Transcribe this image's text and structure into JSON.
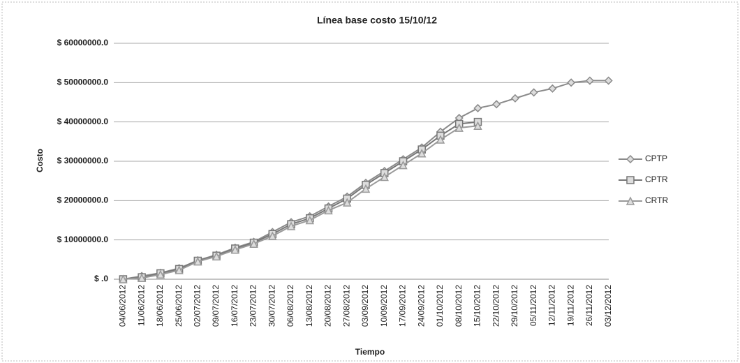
{
  "chart_data": {
    "type": "line",
    "title": "Línea base costo  15/10/12",
    "x_label": "Tiempo",
    "y_label": "Costo",
    "categories": [
      "04/06/2012",
      "11/06/2012",
      "18/06/2012",
      "25/06/2012",
      "02/07/2012",
      "09/07/2012",
      "16/07/2012",
      "23/07/2012",
      "30/07/2012",
      "06/08/2012",
      "13/08/2012",
      "20/08/2012",
      "27/08/2012",
      "03/09/2012",
      "10/09/2012",
      "17/09/2012",
      "24/09/2012",
      "01/10/2012",
      "08/10/2012",
      "15/10/2012",
      "22/10/2012",
      "29/10/2012",
      "05/11/2012",
      "12/11/2012",
      "19/11/2012",
      "26/11/2012",
      "03/12/2012"
    ],
    "series": [
      {
        "name": "CPTP",
        "color": "#8a8a8a",
        "marker": "diamond",
        "values": [
          0,
          800000,
          1600000,
          2800000,
          4800000,
          6200000,
          8000000,
          9500000,
          12000000,
          14500000,
          16000000,
          18500000,
          21000000,
          24500000,
          27500000,
          30500000,
          33500000,
          37500000,
          41000000,
          43500000,
          44500000,
          46000000,
          47500000,
          48500000,
          50000000,
          50500000,
          50500000
        ]
      },
      {
        "name": "CPTR",
        "color": "#777777",
        "marker": "square",
        "values": [
          0,
          500000,
          1500000,
          2600000,
          4700000,
          6000000,
          7800000,
          9300000,
          11500000,
          14000000,
          15500000,
          18000000,
          20500000,
          24000000,
          27000000,
          30000000,
          33000000,
          36500000,
          39500000,
          40000000,
          null,
          null,
          null,
          null,
          null,
          null,
          null
        ]
      },
      {
        "name": "CRTR",
        "color": "#9a9a9a",
        "marker": "triangle",
        "values": [
          0,
          300000,
          1200000,
          2300000,
          4500000,
          5800000,
          7500000,
          9000000,
          11000000,
          13500000,
          15000000,
          17500000,
          19500000,
          23000000,
          26000000,
          29000000,
          32000000,
          35500000,
          38500000,
          39000000,
          null,
          null,
          null,
          null,
          null,
          null,
          null
        ]
      }
    ],
    "ylim": [
      0,
      60000000
    ],
    "yticks": [
      {
        "value": 0,
        "label": "$ .0"
      },
      {
        "value": 10000000,
        "label": "$ 10000000.0"
      },
      {
        "value": 20000000,
        "label": "$ 20000000.0"
      },
      {
        "value": 30000000,
        "label": "$ 30000000.0"
      },
      {
        "value": 40000000,
        "label": "$ 40000000.0"
      },
      {
        "value": 50000000,
        "label": "$ 50000000.0"
      },
      {
        "value": 60000000,
        "label": "$ 60000000.0"
      }
    ],
    "grid": true,
    "legend": "right"
  }
}
